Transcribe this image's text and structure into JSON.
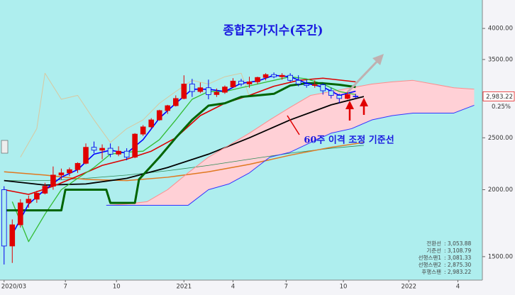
{
  "chart_data": {
    "type": "candlestick",
    "title": "종합주가지수(주간)",
    "annotation": "60주 이격 조정 기준선",
    "log_scale": true,
    "background": "#aeeeee",
    "cloud_color": "#ffd0d6",
    "ylim": [
      1356,
      4520
    ],
    "yticks": [
      {
        "value": 1500,
        "label": "1500.00"
      },
      {
        "value": 2000,
        "label": "2000.00"
      },
      {
        "value": 2500,
        "label": "2500.00"
      },
      {
        "value": 3500,
        "label": "3500.00"
      },
      {
        "value": 4000,
        "label": "4000.00"
      }
    ],
    "xlim": [
      -1,
      117
    ],
    "xticks": [
      {
        "value": 0,
        "label": "2020/03"
      },
      {
        "value": 15,
        "label": "7"
      },
      {
        "value": 27.5,
        "label": "10"
      },
      {
        "value": 44,
        "label": "2021"
      },
      {
        "value": 56,
        "label": "4"
      },
      {
        "value": 69,
        "label": "7"
      },
      {
        "value": 83,
        "label": "10"
      },
      {
        "value": 99,
        "label": "2022"
      },
      {
        "value": 111,
        "label": "4"
      }
    ],
    "last_price": {
      "value": 2983.22,
      "label": "2,983.22"
    },
    "change": "0.25%",
    "candles": {
      "up_color": "#e00000",
      "down_color": "#0000ee",
      "x": [
        0,
        2,
        4,
        6,
        8,
        10,
        12,
        14,
        16,
        18,
        20,
        22,
        24,
        26,
        28,
        30,
        32,
        34,
        36,
        38,
        40,
        42,
        44,
        46,
        48,
        50,
        52,
        54,
        56,
        58,
        60,
        62,
        64,
        66,
        68,
        70,
        72,
        74,
        76,
        78,
        80,
        82,
        84,
        86
      ],
      "open": [
        2000,
        1570,
        1720,
        1890,
        1920,
        1970,
        2030,
        2130,
        2150,
        2180,
        2240,
        2400,
        2370,
        2390,
        2330,
        2360,
        2300,
        2540,
        2620,
        2700,
        2810,
        2870,
        2960,
        3150,
        3050,
        3100,
        3010,
        3040,
        3110,
        3190,
        3150,
        3180,
        3240,
        3280,
        3250,
        3270,
        3200,
        3150,
        3130,
        3140,
        3060,
        3000,
        2960,
        2990
      ],
      "high": [
        2030,
        1760,
        1920,
        1950,
        1990,
        2060,
        2210,
        2190,
        2200,
        2250,
        2440,
        2460,
        2430,
        2440,
        2410,
        2390,
        2550,
        2640,
        2720,
        2820,
        2880,
        3000,
        3270,
        3220,
        3170,
        3210,
        3090,
        3130,
        3230,
        3220,
        3250,
        3250,
        3300,
        3310,
        3300,
        3300,
        3270,
        3210,
        3200,
        3160,
        3100,
        3020,
        3050,
        3020
      ],
      "low": [
        1450,
        1460,
        1700,
        1850,
        1890,
        1960,
        2000,
        2090,
        2120,
        2150,
        2230,
        2340,
        2280,
        2300,
        2310,
        2270,
        2290,
        2520,
        2600,
        2690,
        2770,
        2860,
        2950,
        2980,
        3030,
        2950,
        2980,
        3020,
        3100,
        3120,
        3100,
        3150,
        3200,
        3230,
        3210,
        3180,
        3120,
        3100,
        3100,
        3010,
        2960,
        2900,
        2950,
        2960
      ],
      "close": [
        1570,
        1720,
        1890,
        1920,
        1970,
        2030,
        2130,
        2150,
        2180,
        2240,
        2400,
        2370,
        2390,
        2330,
        2360,
        2300,
        2540,
        2620,
        2700,
        2810,
        2870,
        2960,
        3150,
        3050,
        3100,
        3010,
        3040,
        3110,
        3190,
        3150,
        3180,
        3240,
        3280,
        3250,
        3270,
        3200,
        3150,
        3130,
        3140,
        3060,
        3000,
        2960,
        3010,
        2983.22
      ]
    },
    "series": [
      {
        "name": "전환선",
        "legend_label": ":  3,053.88",
        "color": "#0000ff",
        "width": 1.6,
        "x": [
          2,
          6,
          10,
          14,
          18,
          22,
          26,
          30,
          34,
          38,
          42,
          46,
          50,
          54,
          58,
          62,
          66,
          70,
          74,
          78,
          82,
          86
        ],
        "values": [
          1650,
          1880,
          2000,
          2110,
          2180,
          2330,
          2370,
          2340,
          2480,
          2720,
          2900,
          3080,
          3080,
          3050,
          3160,
          3190,
          3270,
          3250,
          3160,
          3110,
          3000,
          3053.88
        ]
      },
      {
        "name": "기준선",
        "legend_label": ":  3,108.79",
        "color": "#006400",
        "width": 3,
        "x": [
          0,
          14,
          15,
          25,
          26,
          32,
          33,
          38,
          42,
          46,
          50,
          54,
          58,
          62,
          66,
          70,
          74,
          78,
          82,
          86
        ],
        "values": [
          1830,
          1830,
          2000,
          2000,
          1890,
          1890,
          2090,
          2300,
          2500,
          2700,
          2870,
          2900,
          2980,
          3000,
          3020,
          3130,
          3160,
          3160,
          3140,
          3108.79
        ]
      },
      {
        "name": "선행스팬1",
        "legend_label": ":  3,081.33",
        "color": "#ff8c8c",
        "width": 1,
        "x": [
          25,
          30,
          35,
          40,
          45,
          50,
          55,
          60,
          65,
          70,
          75,
          80,
          85,
          90,
          95,
          100,
          105,
          110,
          115
        ],
        "values": [
          1870,
          1880,
          1900,
          2000,
          2150,
          2300,
          2420,
          2550,
          2700,
          2850,
          3000,
          3050,
          3100,
          3150,
          3180,
          3200,
          3150,
          3100,
          3081.33
        ]
      },
      {
        "name": "선행스팬2",
        "legend_label": ":  2,875.30",
        "color": "#3333ff",
        "width": 1,
        "x": [
          25,
          30,
          35,
          40,
          45,
          50,
          55,
          60,
          65,
          70,
          75,
          80,
          85,
          90,
          95,
          100,
          105,
          110,
          115
        ],
        "values": [
          1870,
          1870,
          1870,
          1870,
          1870,
          2000,
          2050,
          2150,
          2300,
          2350,
          2450,
          2550,
          2600,
          2700,
          2750,
          2780,
          2780,
          2780,
          2875.3
        ]
      },
      {
        "name": "후행스팬",
        "legend_label": ":  2,983.22",
        "color": "#d8c8a0",
        "width": 1,
        "x": [
          4,
          8,
          10,
          14,
          18,
          22,
          26,
          30,
          34,
          38,
          42,
          46,
          50,
          54,
          58,
          60
        ],
        "values": [
          2300,
          2600,
          3300,
          2950,
          3000,
          2700,
          2450,
          2600,
          2700,
          2900,
          3050,
          3200,
          3150,
          3250,
          3300,
          2983.22
        ]
      },
      {
        "color": "#dd0000",
        "width": 1.6,
        "x": [
          0,
          6,
          12,
          18,
          24,
          30,
          36,
          42,
          48,
          54,
          60,
          66,
          72,
          78,
          86
        ],
        "values": [
          2000,
          1960,
          2030,
          2120,
          2220,
          2280,
          2360,
          2500,
          2750,
          2900,
          3000,
          3120,
          3200,
          3230,
          3180
        ]
      },
      {
        "color": "#33bb33",
        "width": 1.3,
        "x": [
          2,
          6,
          10,
          14,
          18,
          22,
          26,
          30,
          34,
          38,
          42,
          46,
          50,
          54,
          58,
          62,
          66,
          70,
          74,
          78,
          82,
          86
        ],
        "values": [
          1900,
          1600,
          1800,
          2000,
          2100,
          2200,
          2330,
          2350,
          2360,
          2480,
          2700,
          2950,
          3050,
          3050,
          3100,
          3150,
          3200,
          3250,
          3220,
          3150,
          3050,
          3010
        ]
      },
      {
        "color": "#000000",
        "width": 1.8,
        "x": [
          0,
          10,
          20,
          30,
          40,
          50,
          60,
          70,
          80,
          88
        ],
        "values": [
          2080,
          2040,
          2050,
          2100,
          2200,
          2330,
          2500,
          2700,
          2880,
          2985
        ]
      },
      {
        "color": "#e07820",
        "width": 1.5,
        "x": [
          0,
          10,
          20,
          30,
          40,
          50,
          60,
          70,
          80,
          88
        ],
        "values": [
          2160,
          2130,
          2090,
          2080,
          2110,
          2160,
          2230,
          2320,
          2400,
          2450
        ]
      },
      {
        "color": "#2e8b57",
        "width": 0.8,
        "x": [
          0,
          10,
          20,
          30,
          40,
          50,
          60,
          70,
          80,
          88
        ],
        "values": [
          2080,
          2080,
          2100,
          2130,
          2170,
          2220,
          2280,
          2340,
          2390,
          2420
        ]
      }
    ]
  }
}
